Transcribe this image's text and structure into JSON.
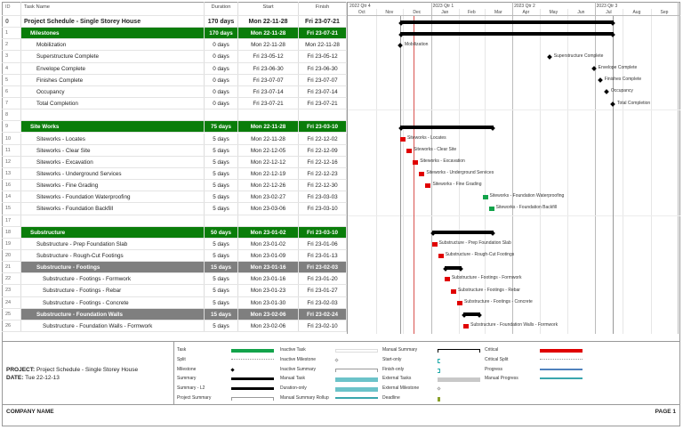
{
  "columns": {
    "id": "ID",
    "name": "Task Name",
    "duration": "Duration",
    "start": "Start",
    "finish": "Finish"
  },
  "timeline": {
    "quarters": [
      {
        "label": "2022 Qtr 4",
        "month": 0
      },
      {
        "label": "2023 Qtr 1",
        "month": 3
      },
      {
        "label": "2023 Qtr 2",
        "month": 6
      },
      {
        "label": "2023 Qtr 3",
        "month": 9
      }
    ],
    "months": [
      "Oct",
      "Nov",
      "Dec",
      "Jan",
      "Feb",
      "Mar",
      "Apr",
      "May",
      "Jun",
      "Jul",
      "Aug",
      "Sep"
    ],
    "origin": "2022-10-01",
    "status_date": "2022-12-13"
  },
  "tasks": [
    {
      "id": "0",
      "name": "Project Schedule - Single Storey House",
      "duration": "170 days",
      "start": "Mon 22-11-28",
      "finish": "Fri 23-07-21",
      "style": "top",
      "indent": 0,
      "bar": "summary",
      "s": "2022-11-28",
      "f": "2023-07-21"
    },
    {
      "id": "1",
      "name": "Milestones",
      "duration": "170 days",
      "start": "Mon 22-11-28",
      "finish": "Fri 23-07-21",
      "style": "sum",
      "indent": 1,
      "bar": "summary",
      "s": "2022-11-28",
      "f": "2023-07-21"
    },
    {
      "id": "2",
      "name": "Mobilization",
      "duration": "0 days",
      "start": "Mon 22-11-28",
      "finish": "Mon 22-11-28",
      "indent": 2,
      "bar": "milestone",
      "s": "2022-11-28",
      "f": "2022-11-28"
    },
    {
      "id": "3",
      "name": "Superstructure Complete",
      "duration": "0 days",
      "start": "Fri 23-05-12",
      "finish": "Fri 23-05-12",
      "indent": 2,
      "bar": "milestone",
      "s": "2023-05-12",
      "f": "2023-05-12"
    },
    {
      "id": "4",
      "name": "Envelope Complete",
      "duration": "0 days",
      "start": "Fri 23-06-30",
      "finish": "Fri 23-06-30",
      "indent": 2,
      "bar": "milestone",
      "s": "2023-06-30",
      "f": "2023-06-30"
    },
    {
      "id": "5",
      "name": "Finishes Complete",
      "duration": "0 days",
      "start": "Fri 23-07-07",
      "finish": "Fri 23-07-07",
      "indent": 2,
      "bar": "milestone",
      "s": "2023-07-07",
      "f": "2023-07-07"
    },
    {
      "id": "6",
      "name": "Occupancy",
      "duration": "0 days",
      "start": "Fri 23-07-14",
      "finish": "Fri 23-07-14",
      "indent": 2,
      "bar": "milestone",
      "s": "2023-07-14",
      "f": "2023-07-14"
    },
    {
      "id": "7",
      "name": "Total Completion",
      "duration": "0 days",
      "start": "Fri 23-07-21",
      "finish": "Fri 23-07-21",
      "indent": 2,
      "bar": "milestone",
      "s": "2023-07-21",
      "f": "2023-07-21"
    },
    {
      "id": "8",
      "name": "",
      "duration": "",
      "start": "",
      "finish": "",
      "indent": 0,
      "bar": "none"
    },
    {
      "id": "9",
      "name": "Site Works",
      "duration": "75 days",
      "start": "Mon 22-11-28",
      "finish": "Fri 23-03-10",
      "style": "sum",
      "indent": 1,
      "bar": "summary",
      "s": "2022-11-28",
      "f": "2023-03-10"
    },
    {
      "id": "10",
      "name": "Siteworks - Locates",
      "duration": "5 days",
      "start": "Mon 22-11-28",
      "finish": "Fri 22-12-02",
      "indent": 2,
      "bar": "critical",
      "s": "2022-11-28",
      "f": "2022-12-02"
    },
    {
      "id": "11",
      "name": "Siteworks - Clear Site",
      "duration": "5 days",
      "start": "Mon 22-12-05",
      "finish": "Fri 22-12-09",
      "indent": 2,
      "bar": "critical",
      "s": "2022-12-05",
      "f": "2022-12-09"
    },
    {
      "id": "12",
      "name": "Siteworks - Excavation",
      "duration": "5 days",
      "start": "Mon 22-12-12",
      "finish": "Fri 22-12-16",
      "indent": 2,
      "bar": "critical",
      "s": "2022-12-12",
      "f": "2022-12-16"
    },
    {
      "id": "13",
      "name": "Siteworks - Underground Services",
      "duration": "5 days",
      "start": "Mon 22-12-19",
      "finish": "Fri 22-12-23",
      "indent": 2,
      "bar": "critical",
      "s": "2022-12-19",
      "f": "2022-12-23"
    },
    {
      "id": "16",
      "name": "Siteworks - Fine Grading",
      "duration": "5 days",
      "start": "Mon 22-12-26",
      "finish": "Fri 22-12-30",
      "indent": 2,
      "bar": "critical",
      "s": "2022-12-26",
      "f": "2022-12-30"
    },
    {
      "id": "14",
      "name": "Siteworks - Foundation Waterproofing",
      "duration": "5 days",
      "start": "Mon 23-02-27",
      "finish": "Fri 23-03-03",
      "indent": 2,
      "bar": "task",
      "s": "2023-02-27",
      "f": "2023-03-03"
    },
    {
      "id": "15",
      "name": "Siteworks - Foundation Backfill",
      "duration": "5 days",
      "start": "Mon 23-03-06",
      "finish": "Fri 23-03-10",
      "indent": 2,
      "bar": "task",
      "s": "2023-03-06",
      "f": "2023-03-10"
    },
    {
      "id": "17",
      "name": "",
      "duration": "",
      "start": "",
      "finish": "",
      "indent": 0,
      "bar": "none"
    },
    {
      "id": "18",
      "name": "Substructure",
      "duration": "50 days",
      "start": "Mon 23-01-02",
      "finish": "Fri 23-03-10",
      "style": "sum",
      "indent": 1,
      "bar": "summary",
      "s": "2023-01-02",
      "f": "2023-03-10"
    },
    {
      "id": "19",
      "name": "Substructure - Prep Foundation Slab",
      "duration": "5 days",
      "start": "Mon 23-01-02",
      "finish": "Fri 23-01-06",
      "indent": 2,
      "bar": "critical",
      "s": "2023-01-02",
      "f": "2023-01-06"
    },
    {
      "id": "20",
      "name": "Substructure - Rough-Cut Footings",
      "duration": "5 days",
      "start": "Mon 23-01-09",
      "finish": "Fri 23-01-13",
      "indent": 2,
      "bar": "critical",
      "s": "2023-01-09",
      "f": "2023-01-13"
    },
    {
      "id": "21",
      "name": "Substructure - Footings",
      "duration": "15 days",
      "start": "Mon 23-01-16",
      "finish": "Fri 23-02-03",
      "style": "l2",
      "indent": 2,
      "bar": "summary",
      "s": "2023-01-16",
      "f": "2023-02-03"
    },
    {
      "id": "22",
      "name": "Substructure - Footings - Formwork",
      "duration": "5 days",
      "start": "Mon 23-01-16",
      "finish": "Fri 23-01-20",
      "indent": 3,
      "bar": "critical",
      "s": "2023-01-16",
      "f": "2023-01-20"
    },
    {
      "id": "23",
      "name": "Substructure - Footings - Rebar",
      "duration": "5 days",
      "start": "Mon 23-01-23",
      "finish": "Fri 23-01-27",
      "indent": 3,
      "bar": "critical",
      "s": "2023-01-23",
      "f": "2023-01-27"
    },
    {
      "id": "24",
      "name": "Substructure - Footings - Concrete",
      "duration": "5 days",
      "start": "Mon 23-01-30",
      "finish": "Fri 23-02-03",
      "indent": 3,
      "bar": "critical",
      "s": "2023-01-30",
      "f": "2023-02-03"
    },
    {
      "id": "25",
      "name": "Substructure - Foundation Walls",
      "duration": "15 days",
      "start": "Mon 23-02-06",
      "finish": "Fri 23-02-24",
      "style": "l2",
      "indent": 2,
      "bar": "summary",
      "s": "2023-02-06",
      "f": "2023-02-24"
    },
    {
      "id": "26",
      "name": "Substructure - Foundation Walls - Formwork",
      "duration": "5 days",
      "start": "Mon 23-02-06",
      "finish": "Fri 23-02-10",
      "indent": 3,
      "bar": "critical",
      "s": "2023-02-06",
      "f": "2023-02-10"
    }
  ],
  "footer": {
    "project_label": "PROJECT:",
    "project": "Project Schedule - Single Storey House",
    "date_label": "DATE:",
    "date": "Tue 22-12-13",
    "company": "COMPANY NAME",
    "page": "PAGE 1"
  },
  "legend": [
    {
      "label": "Task",
      "kind": "task"
    },
    {
      "label": "Split",
      "kind": "split"
    },
    {
      "label": "Milestone",
      "kind": "milestone"
    },
    {
      "label": "Summary",
      "kind": "summary"
    },
    {
      "label": "Summary - L2",
      "kind": "summary"
    },
    {
      "label": "Project Summary",
      "kind": "bracket"
    },
    {
      "label": "Inactive Task",
      "kind": "inactive"
    },
    {
      "label": "Inactive Milestone",
      "kind": "imilestone"
    },
    {
      "label": "Inactive Summary",
      "kind": "bracket"
    },
    {
      "label": "Manual Task",
      "kind": "manual"
    },
    {
      "label": "Duration-only",
      "kind": "duration"
    },
    {
      "label": "Manual Summary Rollup",
      "kind": "rollup"
    },
    {
      "label": "Manual Summary",
      "kind": "msummary"
    },
    {
      "label": "Start-only",
      "kind": "startonly"
    },
    {
      "label": "Finish-only",
      "kind": "finishonly"
    },
    {
      "label": "External Tasks",
      "kind": "external"
    },
    {
      "label": "External Milestone",
      "kind": "emilestone"
    },
    {
      "label": "Deadline",
      "kind": "deadline"
    },
    {
      "label": "Critical",
      "kind": "critical"
    },
    {
      "label": "Critical Split",
      "kind": "split"
    },
    {
      "label": "Progress",
      "kind": "progress"
    },
    {
      "label": "Manual Progress",
      "kind": "mprogress"
    }
  ],
  "colors": {
    "summary_green": "#0a7d0a",
    "summary_l2": "#7f7f7f",
    "critical": "#e00000",
    "task": "#12a34a",
    "status_line": "#d9534f",
    "manual": "#6cc3c9",
    "progress": "#4f81bd"
  }
}
